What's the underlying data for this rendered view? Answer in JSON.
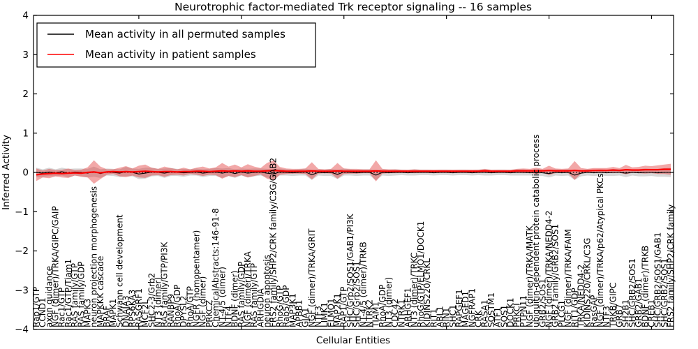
{
  "title": "Neurotrophic factor-mediated Trk receptor signaling -- 16 samples",
  "axes": {
    "xlabel": "Cellular Entities",
    "ylabel": "Inferred Activity",
    "ytick_labels": [
      "4",
      "3",
      "2",
      "1",
      "0",
      "−1",
      "−2",
      "−3",
      "−4"
    ],
    "ytick_values": [
      4,
      3,
      2,
      1,
      0,
      -1,
      -2,
      -3,
      -4
    ]
  },
  "legend": {
    "items": [
      {
        "label": "Mean activity in all permuted samples",
        "color": "#000000"
      },
      {
        "label": "Mean activity in patient samples",
        "color": "#ff0000"
      }
    ]
  },
  "colors": {
    "patient_line": "#ff0000",
    "permuted_line": "#000000",
    "baseline_dotted": "#000000",
    "patient_band": "#e03030",
    "permuted_band": "#909090",
    "frame": "#000000"
  },
  "chart_data": {
    "type": "line",
    "title": "Neurotrophic factor-mediated Trk receptor signaling -- 16 samples",
    "xlabel": "Cellular Entities",
    "ylabel": "Inferred Activity",
    "ylim": [
      -4,
      4
    ],
    "baseline": 0,
    "grid": false,
    "legend_position": "upper left",
    "categories": [
      "Rap1/GTP",
      "CCND1",
      "axon guidance",
      "NGF (dimer)/TRKA/GIPC/GAIP",
      "Rac1/GTP",
      "Rac1/GTP/Tiam1",
      "RAS family/GTP",
      "RAS family/GDP",
      "MAPK3",
      "neuron projection morphogenesis",
      "MAPKKK cascade",
      "BRAF",
      "MAPK1",
      "Schwann cell development",
      "DNAJA3",
      "RPS6KA3",
      "RASGRF1",
      "MCF2L",
      "SHC2-3/Grb2",
      "NT3 (dimer)",
      "RAS family/GTP/PI3K",
      "RANBP9",
      "RhoA/GDP",
      "DPYSL2",
      "RhoA/GTP",
      "NGFR (homopentamer)",
      "NGF (dimer)",
      "PRKCZ",
      "ChemicalAbstracts:146-91-8",
      "NT-4/5 (dimer)",
      "NTF4",
      "BDNF (dimer)",
      "RAS family/GDP",
      "NGF (dimer)/TRKA",
      "RAS family/GTP",
      "ARHGDIA",
      "neuron apoptosis",
      "FRS2 family/SHP2/CRK family/C3G/GAB2",
      "RhoG/GTP",
      "Rab5/GDP",
      "MAP3K1",
      "APBB1",
      "GJA1",
      "NGF (dimer)/TRKA/GRIT",
      "NTF3",
      "LIMK1",
      "ELMO1",
      "MAP2K1",
      "RAP1/GTP",
      "SHC/Grb2/SOS1/GAB1/PI3K",
      "SHC/Grb2/SOS1",
      "NT-4/5 (dimer)/TRKB",
      "NTRK2",
      "TIAM1",
      "RhoA/GDP",
      "NT3 (dimer)",
      "CDC42",
      "NTRK1",
      "ARHGEF1",
      "NT3 (dimer)/TRKC",
      "RhoG/GTP/ELMO1/DOCK1",
      "KIDINS220/CRKL",
      "RIT1",
      "ABL1",
      "RIN1",
      "SHC1",
      "RAPGEF1",
      "MAGED1",
      "NGFRAP1",
      "CRK",
      "RASA1",
      "SQSTM1",
      "ATF1",
      "SOS1",
      "DOCK1",
      "PRKCI",
      "PTPN11",
      "NGF (dimer)/TRKA/MATK",
      "ubiquitin-dependent protein catabolic process",
      "GRB2/SOS1",
      "NGF (dimer)/TRKA/NEDD4-2",
      "GRB2 family/GRB2/SOS1",
      "PLCG1",
      "NGF (dimer)/TRKA/FAIM",
      "RIT1/GDP",
      "TRKA/NEDD4-2",
      "KIDINS220/CRKL/C3G",
      "RasGAP",
      "NGF (dimer)/TRKA/p62/Atypical PKCs",
      "NTF3",
      "TRKB/GIPC",
      "GRB7",
      "SH2B1",
      "SHC/GRB2/SOS1",
      "GRB2/GAB1",
      "BDNF (dimer)/TRKB",
      "CREB1",
      "SHC/GRB2/SOS1/GAB1",
      "SHC/GRB2/SOS1",
      "FRS2 family/SHP2/CRK family"
    ],
    "series": [
      {
        "name": "Mean activity in all permuted samples",
        "color": "#000000",
        "values": [
          0,
          -0.02,
          0.01,
          -0.01,
          0.02,
          -0.02,
          0.01,
          0,
          -0.02,
          0.02,
          -0.03,
          0.01,
          0,
          -0.02,
          0.02,
          0,
          -0.04,
          -0.02,
          0.01,
          0,
          -0.02,
          0.01,
          0,
          -0.01,
          0,
          0.01,
          -0.02,
          0,
          0.01,
          -0.02,
          0.01,
          -0.03,
          0.01,
          -0.02,
          0,
          0.01,
          -0.02,
          -0.04,
          0.01,
          0,
          -0.01,
          0,
          0.01,
          -0.06,
          0,
          -0.01,
          0,
          -0.05,
          0.01,
          0,
          -0.01,
          0,
          0,
          -0.07,
          0,
          -0.01,
          0,
          0,
          -0.01,
          0,
          0,
          0,
          -0.01,
          0,
          0,
          -0.01,
          0,
          0,
          -0.01,
          0,
          0,
          -0.01,
          0,
          0,
          -0.01,
          0,
          0,
          -0.01,
          0,
          -0.01,
          -0.03,
          0,
          -0.01,
          0,
          -0.07,
          -0.02,
          0,
          -0.01,
          0,
          -0.01,
          0,
          0,
          -0.02,
          0,
          -0.01,
          0,
          0,
          -0.01,
          0,
          0
        ]
      },
      {
        "name": "Mean activity in patient samples",
        "color": "#ff0000",
        "values": [
          -0.06,
          -0.04,
          -0.03,
          -0.02,
          -0.03,
          -0.02,
          -0.01,
          -0.02,
          0,
          0.01,
          -0.01,
          0.01,
          0.02,
          0.01,
          0.02,
          0.01,
          0.02,
          0.03,
          0.02,
          0.01,
          0.02,
          0.02,
          0.01,
          0.02,
          0.02,
          0.03,
          0.03,
          0.02,
          0.03,
          0.04,
          0.03,
          0.04,
          0.03,
          0.04,
          0.03,
          0.03,
          0.04,
          0.05,
          0.04,
          0.03,
          0.03,
          0.03,
          0.03,
          0.04,
          0.03,
          0.03,
          0.03,
          0.04,
          0.03,
          0.03,
          0.03,
          0.03,
          0.03,
          0.04,
          0.03,
          0.03,
          0.03,
          0.03,
          0.03,
          0.03,
          0.03,
          0.03,
          0.03,
          0.03,
          0.03,
          0.03,
          0.03,
          0.03,
          0.03,
          0.03,
          0.04,
          0.03,
          0.03,
          0.03,
          0.03,
          0.04,
          0.04,
          0.04,
          0.04,
          0.04,
          0.05,
          0.04,
          0.04,
          0.04,
          0.05,
          0.04,
          0.04,
          0.05,
          0.05,
          0.05,
          0.06,
          0.05,
          0.07,
          0.06,
          0.06,
          0.07,
          0.07,
          0.07,
          0.08,
          0.08
        ]
      }
    ],
    "bands": [
      {
        "name": "patient std band",
        "color": "#e03030",
        "opacity": 0.42,
        "center_series": 1,
        "halfwidths": [
          0.16,
          0.09,
          0.12,
          0.08,
          0.1,
          0.12,
          0.07,
          0.09,
          0.13,
          0.3,
          0.16,
          0.07,
          0.06,
          0.11,
          0.14,
          0.09,
          0.15,
          0.17,
          0.1,
          0.08,
          0.13,
          0.09,
          0.07,
          0.1,
          0.06,
          0.09,
          0.12,
          0.08,
          0.1,
          0.2,
          0.12,
          0.16,
          0.1,
          0.17,
          0.12,
          0.08,
          0.2,
          0.26,
          0.1,
          0.07,
          0.06,
          0.06,
          0.07,
          0.22,
          0.06,
          0.05,
          0.06,
          0.2,
          0.07,
          0.06,
          0.06,
          0.05,
          0.05,
          0.27,
          0.06,
          0.05,
          0.05,
          0.04,
          0.04,
          0.05,
          0.04,
          0.04,
          0.04,
          0.04,
          0.04,
          0.04,
          0.04,
          0.04,
          0.04,
          0.04,
          0.05,
          0.04,
          0.04,
          0.04,
          0.04,
          0.05,
          0.06,
          0.05,
          0.08,
          0.05,
          0.12,
          0.06,
          0.05,
          0.06,
          0.24,
          0.07,
          0.05,
          0.06,
          0.06,
          0.06,
          0.08,
          0.06,
          0.12,
          0.07,
          0.08,
          0.1,
          0.09,
          0.11,
          0.12,
          0.14
        ]
      },
      {
        "name": "permuted std band",
        "color": "#909090",
        "opacity": 0.35,
        "center_series": 0,
        "halfwidths": [
          0.12,
          0.1,
          0.11,
          0.09,
          0.1,
          0.11,
          0.09,
          0.1,
          0.11,
          0.13,
          0.11,
          0.09,
          0.09,
          0.1,
          0.12,
          0.1,
          0.13,
          0.14,
          0.11,
          0.09,
          0.12,
          0.1,
          0.09,
          0.1,
          0.08,
          0.09,
          0.1,
          0.09,
          0.1,
          0.12,
          0.1,
          0.11,
          0.09,
          0.11,
          0.1,
          0.09,
          0.11,
          0.12,
          0.09,
          0.08,
          0.08,
          0.08,
          0.09,
          0.13,
          0.08,
          0.08,
          0.09,
          0.12,
          0.09,
          0.08,
          0.08,
          0.08,
          0.08,
          0.13,
          0.08,
          0.08,
          0.08,
          0.07,
          0.07,
          0.08,
          0.07,
          0.07,
          0.07,
          0.07,
          0.07,
          0.07,
          0.07,
          0.07,
          0.07,
          0.07,
          0.08,
          0.07,
          0.07,
          0.07,
          0.07,
          0.08,
          0.08,
          0.07,
          0.09,
          0.08,
          0.1,
          0.08,
          0.08,
          0.08,
          0.12,
          0.08,
          0.08,
          0.08,
          0.08,
          0.08,
          0.09,
          0.08,
          0.1,
          0.08,
          0.09,
          0.1,
          0.09,
          0.1,
          0.11,
          0.12
        ]
      }
    ],
    "xtick_major_indices": [
      16,
      32,
      48,
      64,
      80,
      96
    ]
  }
}
